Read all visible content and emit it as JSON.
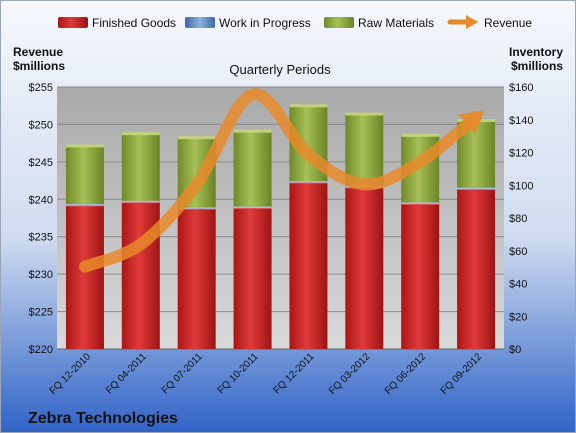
{
  "company": "Zebra Technologies",
  "chart_data": {
    "type": "bar",
    "stacked": true,
    "title": "Quarterly Periods",
    "left_axis_label": [
      "Revenue",
      "$millions"
    ],
    "right_axis_label": [
      "Inventory",
      "$millions"
    ],
    "categories": [
      "FQ 12-2010",
      "FQ 04-2011",
      "FQ 07-2011",
      "FQ 10-2011",
      "FQ 12-2011",
      "FQ 03-2012",
      "FQ 06-2012",
      "FQ 09-2012"
    ],
    "left_axis": {
      "min": 220,
      "max": 255,
      "step": 5,
      "prefix": "$"
    },
    "right_axis": {
      "min": 0,
      "max": 160,
      "step": 20,
      "prefix": "$"
    },
    "grid": true,
    "legend_position": "top",
    "series": [
      {
        "name": "Finished Goods",
        "type": "bar",
        "axis": "right",
        "color": "#cc2222",
        "values": [
          88,
          90,
          86,
          86.5,
          102,
          99,
          89,
          98
        ]
      },
      {
        "name": "Work in Progress",
        "type": "bar",
        "axis": "right",
        "color": "#5b86c4",
        "values": [
          0.5,
          0.5,
          0.5,
          0.5,
          0.5,
          0.5,
          0.5,
          0.5
        ]
      },
      {
        "name": "Raw Materials",
        "type": "bar",
        "axis": "right",
        "color": "#8faa3c",
        "values": [
          35.5,
          41,
          42.5,
          46,
          46,
          44,
          41,
          41
        ]
      },
      {
        "name": "Revenue",
        "type": "line",
        "axis": "left",
        "color": "#e8892a",
        "values": [
          231,
          234,
          242,
          254,
          246,
          242,
          245,
          251
        ]
      }
    ]
  }
}
